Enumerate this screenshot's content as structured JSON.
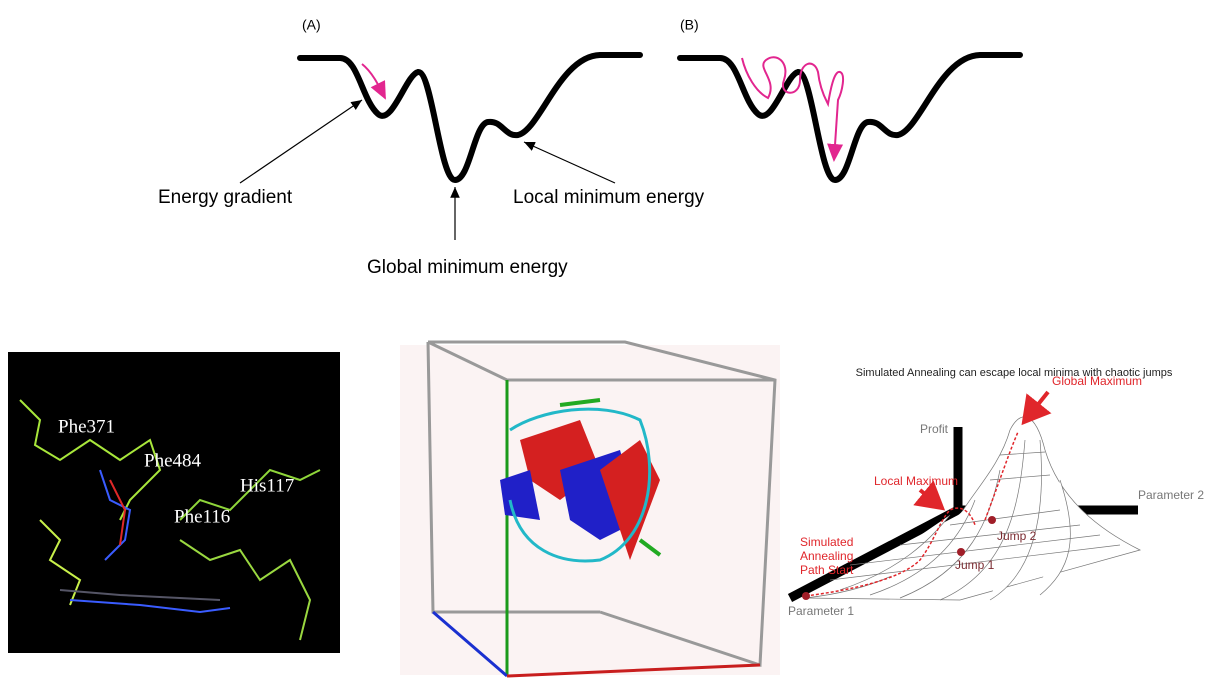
{
  "panel_a": {
    "tag": "(A)",
    "energy_gradient": "Energy gradient",
    "local_minimum": "Local minimum energy",
    "global_minimum": "Global minimum energy"
  },
  "panel_b": {
    "tag": "(B)"
  },
  "binding_site": {
    "residues": [
      "Phe371",
      "Phe484",
      "His117",
      "Phe116"
    ]
  },
  "annealing": {
    "title": "Simulated Annealing can escape local minima with chaotic jumps",
    "global_max": "Global Maximum",
    "local_max": "Local Maximum",
    "profit": "Profit",
    "parameter_1": "Parameter 1",
    "parameter_2": "Parameter 2",
    "path_start": [
      "Simulated",
      "Annealing",
      "Path Start"
    ],
    "jump_1": "Jump 1",
    "jump_2": "Jump 2"
  }
}
